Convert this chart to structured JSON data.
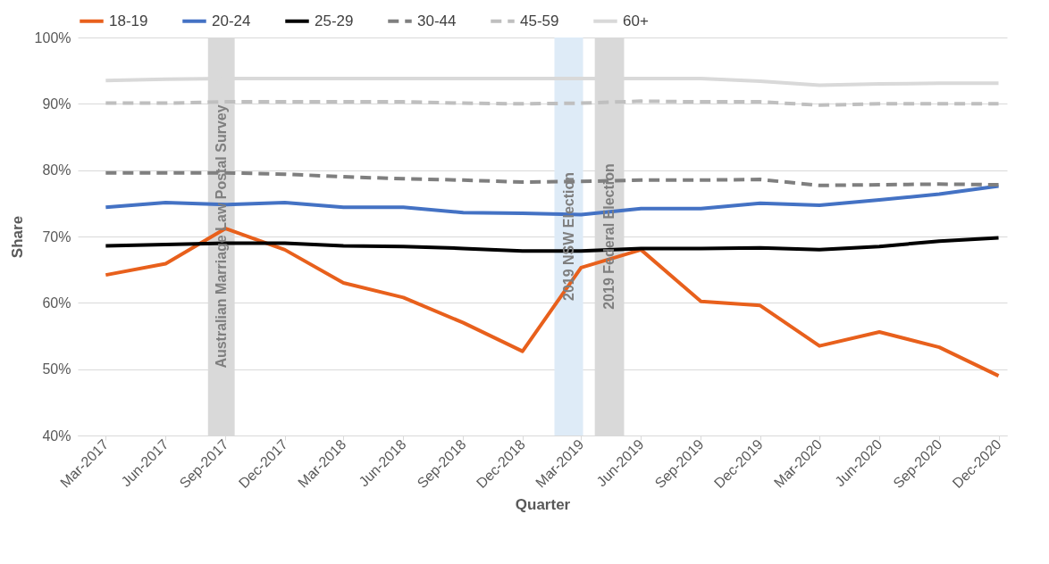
{
  "chart_data": {
    "type": "line",
    "xlabel": "Quarter",
    "ylabel": "Share",
    "x": [
      "2017-03",
      "2017-06",
      "2017-09",
      "2017-12",
      "2018-03",
      "2018-06",
      "2018-09",
      "2018-12",
      "2019-03",
      "2019-06",
      "2019-09",
      "2019-12",
      "2020-03",
      "2020-06",
      "2020-09",
      "2020-12"
    ],
    "xlim": [
      "2017-01-17",
      "2020-12-14"
    ],
    "xticks": [
      {
        "value": "2017-03",
        "label": "Mar-2017"
      },
      {
        "value": "2017-06",
        "label": "Jun-2017"
      },
      {
        "value": "2017-09",
        "label": "Sep-2017"
      },
      {
        "value": "2017-12",
        "label": "Dec-2017"
      },
      {
        "value": "2018-03",
        "label": "Mar-2018"
      },
      {
        "value": "2018-06",
        "label": "Jun-2018"
      },
      {
        "value": "2018-09",
        "label": "Sep-2018"
      },
      {
        "value": "2018-12",
        "label": "Dec-2018"
      },
      {
        "value": "2019-03",
        "label": "Mar-2019"
      },
      {
        "value": "2019-06",
        "label": "Jun-2019"
      },
      {
        "value": "2019-09",
        "label": "Sep-2019"
      },
      {
        "value": "2019-12",
        "label": "Dec-2019"
      },
      {
        "value": "2020-03",
        "label": "Mar-2020"
      },
      {
        "value": "2020-06",
        "label": "Jun-2020"
      },
      {
        "value": "2020-09",
        "label": "Sep-2020"
      },
      {
        "value": "2020-12",
        "label": "Dec-2020"
      }
    ],
    "ylim": [
      40,
      100
    ],
    "yticks": [
      {
        "value": 40,
        "label": "40%"
      },
      {
        "value": 50,
        "label": "50%"
      },
      {
        "value": 60,
        "label": "60%"
      },
      {
        "value": 70,
        "label": "70%"
      },
      {
        "value": 80,
        "label": "80%"
      },
      {
        "value": 90,
        "label": "90%"
      },
      {
        "value": 100,
        "label": "100%"
      }
    ],
    "grid": "y",
    "legend": "top",
    "series": [
      {
        "name": "18-19",
        "color": "#e8601c",
        "line_style": "solid",
        "values": [
          64.2,
          65.9,
          71.2,
          68.0,
          63.0,
          60.8,
          57.0,
          52.7,
          65.3,
          68.0,
          60.2,
          59.6,
          53.5,
          55.6,
          53.3,
          49.0
        ]
      },
      {
        "name": "20-24",
        "color": "#4472c4",
        "line_style": "solid",
        "values": [
          74.4,
          75.1,
          74.8,
          75.1,
          74.4,
          74.4,
          73.6,
          73.5,
          73.3,
          74.2,
          74.2,
          75.0,
          74.7,
          75.5,
          76.4,
          77.6
        ]
      },
      {
        "name": "25-29",
        "color": "#000000",
        "line_style": "solid",
        "values": [
          68.6,
          68.8,
          69.0,
          69.0,
          68.6,
          68.5,
          68.2,
          67.8,
          67.8,
          68.2,
          68.2,
          68.3,
          68.0,
          68.5,
          69.3,
          69.8
        ]
      },
      {
        "name": "30-44",
        "color": "#7f7f7f",
        "line_style": "dashed",
        "values": [
          79.6,
          79.6,
          79.6,
          79.4,
          79.0,
          78.7,
          78.5,
          78.2,
          78.3,
          78.5,
          78.5,
          78.6,
          77.7,
          77.8,
          77.9,
          77.8
        ]
      },
      {
        "name": "45-59",
        "color": "#bfbfbf",
        "line_style": "dashed",
        "values": [
          90.1,
          90.1,
          90.3,
          90.3,
          90.3,
          90.3,
          90.1,
          90.0,
          90.1,
          90.4,
          90.3,
          90.3,
          89.8,
          90.0,
          90.0,
          90.0
        ]
      },
      {
        "name": "60+",
        "color": "#d9d9d9",
        "line_style": "solid",
        "values": [
          93.5,
          93.7,
          93.8,
          93.8,
          93.8,
          93.8,
          93.8,
          93.8,
          93.8,
          93.8,
          93.8,
          93.4,
          92.8,
          93.0,
          93.1,
          93.1
        ]
      }
    ],
    "bands": [
      {
        "axis": "x",
        "from": "2017-08-05",
        "to": "2017-09-15",
        "label": "Australian Marriage  Law Postal Survey",
        "color": "#d9d9d9"
      },
      {
        "axis": "x",
        "from": "2019-01-19",
        "to": "2019-03-04",
        "label": "2019 NSW  Election",
        "color": "#deebf7"
      },
      {
        "axis": "x",
        "from": "2019-03-22",
        "to": "2019-05-06",
        "label": "2019 Federal  Election",
        "color": "#d9d9d9"
      }
    ]
  }
}
